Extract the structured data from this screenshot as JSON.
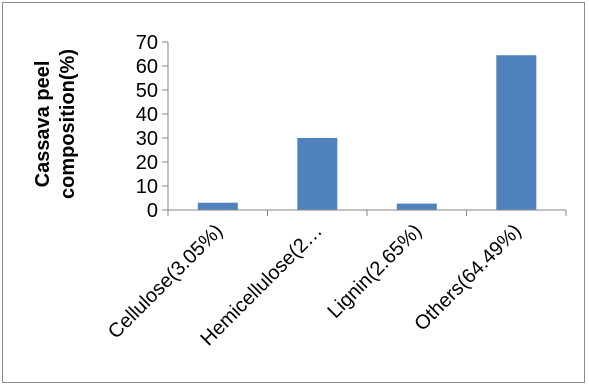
{
  "chart_data": {
    "type": "bar",
    "categories": [
      "Cellulose(3.05%)",
      "Hemicellulose(2…",
      "Lignin(2.65%)",
      "Others(64.49%)"
    ],
    "values": [
      3.05,
      29.99,
      2.65,
      64.49
    ],
    "title": "",
    "xlabel": "",
    "ylabel_lines": [
      "Cassava peel",
      "composition(%)"
    ],
    "ylim": [
      0,
      70
    ],
    "yticks": [
      0,
      10,
      20,
      30,
      40,
      50,
      60,
      70
    ],
    "grid": false,
    "legend": "none",
    "bar_color": "#4f81bd",
    "axis_color": "#868686"
  }
}
